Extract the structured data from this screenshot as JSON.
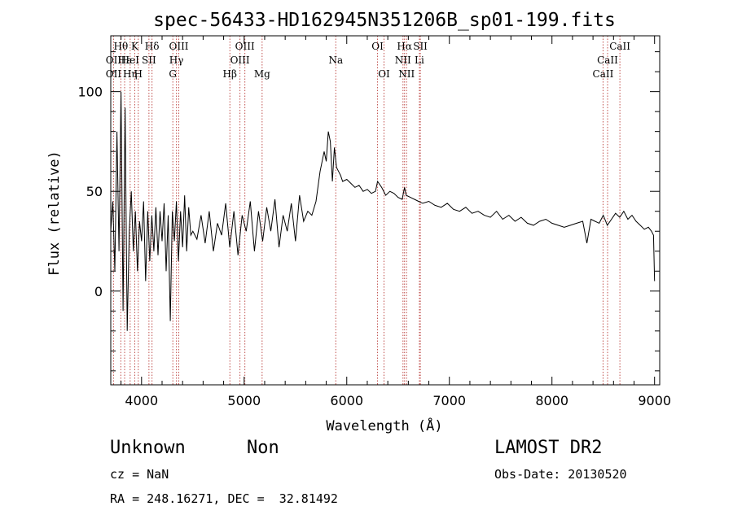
{
  "chart_data": {
    "type": "line",
    "title": "spec-56433-HD162945N351206B_sp01-199.fits",
    "xlabel": "Wavelength (Å)",
    "ylabel": "Flux (relative)",
    "xlim": [
      3700,
      9050
    ],
    "ylim": [
      -47,
      128
    ],
    "x_ticks": [
      4000,
      5000,
      6000,
      7000,
      8000,
      9000
    ],
    "x_tick_labels": [
      "4000",
      "5000",
      "6000",
      "7000",
      "8000",
      "9000"
    ],
    "y_ticks": [
      0,
      50,
      100
    ],
    "y_tick_labels": [
      "0",
      "50",
      "100"
    ],
    "grid": false,
    "series": [
      {
        "color": "#000000",
        "x": [
          3700,
          3720,
          3740,
          3760,
          3780,
          3800,
          3820,
          3840,
          3860,
          3880,
          3900,
          3920,
          3940,
          3960,
          3980,
          4000,
          4020,
          4040,
          4060,
          4080,
          4100,
          4120,
          4140,
          4160,
          4180,
          4200,
          4220,
          4240,
          4260,
          4280,
          4300,
          4320,
          4340,
          4360,
          4380,
          4400,
          4420,
          4440,
          4460,
          4480,
          4500,
          4540,
          4580,
          4620,
          4660,
          4700,
          4740,
          4780,
          4820,
          4860,
          4900,
          4940,
          4980,
          5020,
          5060,
          5100,
          5140,
          5180,
          5220,
          5260,
          5300,
          5340,
          5380,
          5420,
          5460,
          5500,
          5540,
          5580,
          5620,
          5660,
          5700,
          5740,
          5780,
          5800,
          5820,
          5840,
          5860,
          5880,
          5900,
          5920,
          5940,
          5960,
          6000,
          6040,
          6080,
          6120,
          6160,
          6200,
          6240,
          6280,
          6300,
          6340,
          6380,
          6420,
          6460,
          6500,
          6540,
          6563,
          6580,
          6620,
          6660,
          6700,
          6740,
          6800,
          6860,
          6920,
          6980,
          7040,
          7100,
          7160,
          7220,
          7280,
          7340,
          7400,
          7460,
          7520,
          7580,
          7640,
          7700,
          7760,
          7820,
          7880,
          7940,
          8000,
          8060,
          8120,
          8180,
          8240,
          8300,
          8340,
          8380,
          8420,
          8460,
          8500,
          8540,
          8580,
          8620,
          8660,
          8700,
          8740,
          8780,
          8820,
          8860,
          8900,
          8940,
          8970,
          8990,
          9000
        ],
        "y": [
          30,
          45,
          10,
          80,
          20,
          100,
          -10,
          92,
          -20,
          30,
          50,
          20,
          40,
          10,
          35,
          25,
          45,
          5,
          40,
          15,
          38,
          20,
          42,
          18,
          40,
          25,
          44,
          10,
          38,
          -15,
          40,
          25,
          45,
          15,
          40,
          22,
          48,
          20,
          42,
          28,
          30,
          26,
          38,
          24,
          40,
          20,
          34,
          28,
          44,
          22,
          40,
          18,
          38,
          30,
          45,
          20,
          40,
          25,
          42,
          30,
          46,
          22,
          38,
          30,
          44,
          25,
          48,
          35,
          40,
          38,
          45,
          60,
          70,
          65,
          80,
          75,
          55,
          72,
          62,
          60,
          58,
          55,
          56,
          54,
          52,
          53,
          50,
          51,
          49,
          50,
          55,
          52,
          48,
          50,
          49,
          47,
          46,
          52,
          48,
          47,
          46,
          45,
          44,
          45,
          43,
          42,
          44,
          41,
          40,
          42,
          39,
          40,
          38,
          37,
          40,
          36,
          38,
          35,
          37,
          34,
          33,
          35,
          36,
          34,
          33,
          32,
          33,
          34,
          35,
          24,
          36,
          35,
          34,
          38,
          33,
          36,
          39,
          37,
          40,
          36,
          38,
          35,
          33,
          31,
          32,
          30,
          28,
          5
        ]
      }
    ],
    "emission_lines": [
      {
        "label": "OII",
        "x": 3727,
        "row": 2
      },
      {
        "label": "OII",
        "x": 3727,
        "row": 3
      },
      {
        "label": "Hθ",
        "x": 3798,
        "row": 1
      },
      {
        "label": "Hε",
        "x": 3835,
        "row": 2
      },
      {
        "label": "Hη",
        "x": 3889,
        "row": 3
      },
      {
        "label": "K",
        "x": 3934,
        "row": 1
      },
      {
        "label": "HeI",
        "x": 3889,
        "row": 2
      },
      {
        "label": "H",
        "x": 3968,
        "row": 3
      },
      {
        "label": "SII",
        "x": 4072,
        "row": 2
      },
      {
        "label": "Hδ",
        "x": 4102,
        "row": 1
      },
      {
        "label": "OIII",
        "x": 4363,
        "row": 1
      },
      {
        "label": "Hγ",
        "x": 4340,
        "row": 2
      },
      {
        "label": "G",
        "x": 4305,
        "row": 3
      },
      {
        "label": "Hβ",
        "x": 4861,
        "row": 3
      },
      {
        "label": "OIII",
        "x": 5007,
        "row": 1
      },
      {
        "label": "OIII",
        "x": 4959,
        "row": 2
      },
      {
        "label": "Mg",
        "x": 5175,
        "row": 3
      },
      {
        "label": "Na",
        "x": 5893,
        "row": 2
      },
      {
        "label": "OI",
        "x": 6300,
        "row": 1
      },
      {
        "label": "OI",
        "x": 6363,
        "row": 3
      },
      {
        "label": "Hα",
        "x": 6563,
        "row": 1
      },
      {
        "label": "NII",
        "x": 6548,
        "row": 2
      },
      {
        "label": "NII",
        "x": 6583,
        "row": 3
      },
      {
        "label": "SII",
        "x": 6717,
        "row": 1
      },
      {
        "label": "Li",
        "x": 6708,
        "row": 2
      },
      {
        "label": "CaII",
        "x": 8662,
        "row": 1
      },
      {
        "label": "CaII",
        "x": 8542,
        "row": 2
      },
      {
        "label": "CaII",
        "x": 8498,
        "row": 3
      }
    ],
    "line_marker_x": [
      3727,
      3798,
      3835,
      3889,
      3934,
      3968,
      4072,
      4102,
      4305,
      4340,
      4363,
      4861,
      4959,
      5007,
      5175,
      5893,
      6300,
      6363,
      6548,
      6563,
      6583,
      6708,
      6717,
      8498,
      8542,
      8662
    ],
    "line_marker_color": "#c0504d"
  },
  "info": {
    "class": "Unknown",
    "subclass": "Non",
    "survey": "LAMOST DR2",
    "cz": "cz = NaN",
    "obs_date": "Obs-Date: 20130520",
    "coords": "RA = 248.16271, DEC =  32.81492"
  }
}
